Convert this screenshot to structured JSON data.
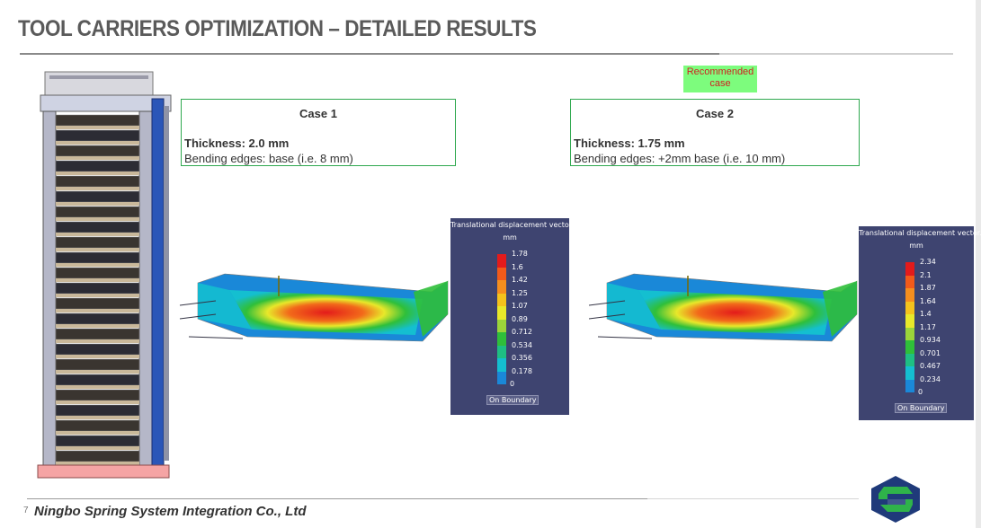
{
  "slide": {
    "title": "TOOL CARRIERS OPTIMIZATION – DETAILED RESULTS",
    "page_number": "7",
    "footer": "Ningbo Spring System Integration Co., Ltd"
  },
  "recommended_label": "Recommended case",
  "cases": [
    {
      "title": "Case 1",
      "thickness": "Thickness: 2.0 mm",
      "edges": "Bending edges: base (i.e. 8 mm)"
    },
    {
      "title": "Case 2",
      "thickness": "Thickness: 1.75 mm",
      "edges": "Bending edges: +2mm base (i.e. 10 mm)"
    }
  ],
  "legends": [
    {
      "title": "Translational displacement vector.",
      "unit": "mm",
      "values": [
        "1.78",
        "1.6",
        "1.42",
        "1.25",
        "1.07",
        "0.89",
        "0.712",
        "0.534",
        "0.356",
        "0.178",
        "0"
      ],
      "boundary": "On Boundary"
    },
    {
      "title": "Translational displacement vector.",
      "unit": "mm",
      "values": [
        "2.34",
        "2.1",
        "1.87",
        "1.64",
        "1.4",
        "1.17",
        "0.934",
        "0.701",
        "0.467",
        "0.234",
        "0"
      ],
      "boundary": "On Boundary"
    }
  ],
  "legend_colors": [
    "#e31b1b",
    "#f25a1a",
    "#f58e1e",
    "#f4c21c",
    "#e8e82a",
    "#9bd43a",
    "#2fbf3a",
    "#1ebf83",
    "#14bfd0",
    "#1a88d8",
    "#1a2ad0"
  ]
}
